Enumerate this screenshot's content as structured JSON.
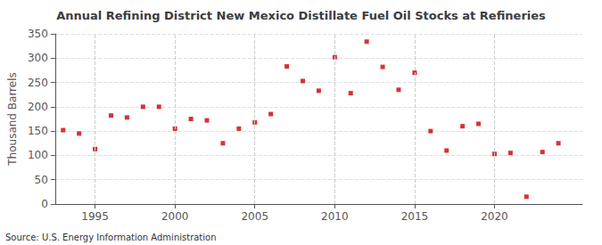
{
  "chart_data": {
    "type": "scatter",
    "title": "Annual Refining District New Mexico Distillate Fuel Oil Stocks at Refineries",
    "ylabel": "Thousand Barrels",
    "annotations": [
      "Source: U.S. Energy Information Administration"
    ],
    "color": "#cc0000",
    "marker": "square",
    "grid": true,
    "xlim": [
      1992.5,
      2025.5
    ],
    "xticks": [
      1995,
      2000,
      2005,
      2010,
      2015,
      2020
    ],
    "ylim": [
      0,
      350
    ],
    "yticks": [
      0,
      50,
      100,
      150,
      200,
      250,
      300,
      350
    ],
    "x": [
      1993,
      1994,
      1995,
      1996,
      1997,
      1998,
      1999,
      2000,
      2001,
      2002,
      2003,
      2004,
      2005,
      2006,
      2007,
      2008,
      2009,
      2010,
      2011,
      2012,
      2013,
      2014,
      2015,
      2016,
      2017,
      2018,
      2019,
      2020,
      2021,
      2022,
      2023,
      2024
    ],
    "values": [
      152,
      145,
      113,
      182,
      178,
      200,
      200,
      155,
      175,
      172,
      125,
      155,
      168,
      185,
      283,
      253,
      233,
      302,
      228,
      334,
      282,
      235,
      270,
      150,
      110,
      160,
      165,
      103,
      105,
      15,
      107,
      125
    ]
  }
}
